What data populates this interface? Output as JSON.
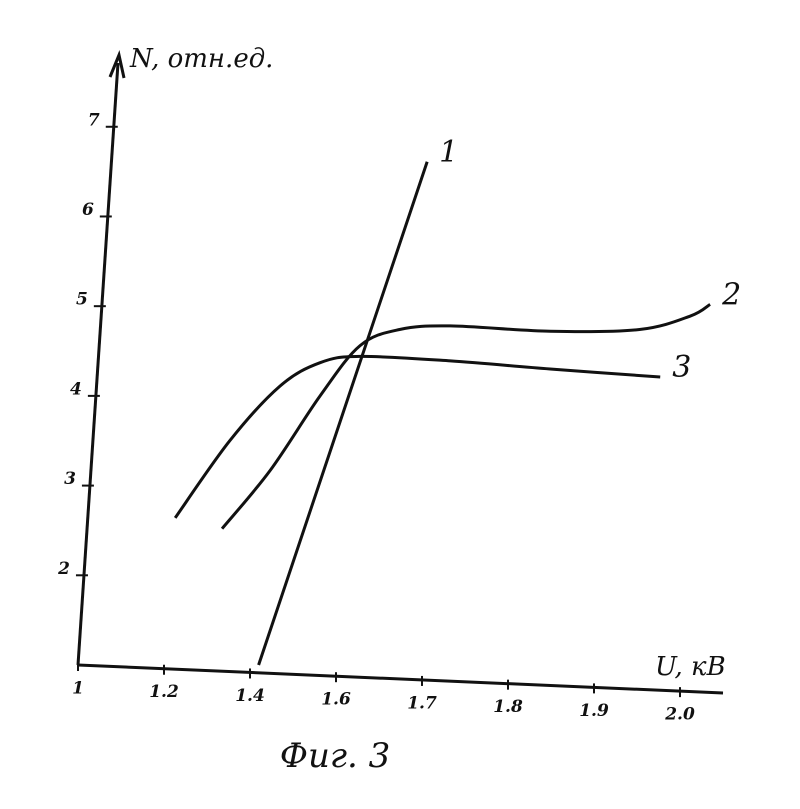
{
  "chart_data": {
    "type": "line",
    "title": "Фиг. 3",
    "x_label": "U, кВ",
    "y_label": "N, отн.ед.",
    "xlim": [
      1,
      2.05
    ],
    "xticks": [
      1,
      1.2,
      1.4,
      1.6,
      1.7,
      1.8,
      1.9,
      {
        "value": 2,
        "label": "2.0"
      }
    ],
    "ylim": [
      1,
      7.8
    ],
    "yticks": [
      2,
      3,
      4,
      5,
      6,
      7
    ],
    "grid": false,
    "series": [
      {
        "name": "1",
        "color": "#111111",
        "x": [
          1.42,
          1.706
        ],
        "values": [
          1.0,
          6.61
        ]
      },
      {
        "name": "2",
        "color": "#111111",
        "x": [
          1.335,
          1.447,
          1.563,
          1.628,
          1.674,
          1.733,
          1.849,
          1.953,
          2.012,
          2.035
        ],
        "values": [
          2.52,
          3.17,
          4.0,
          4.56,
          4.74,
          4.78,
          4.72,
          4.74,
          4.89,
          5.02
        ]
      },
      {
        "name": "3",
        "color": "#111111",
        "x": [
          1.226,
          1.353,
          1.47,
          1.563,
          1.628,
          1.733,
          1.849,
          1.977
        ],
        "values": [
          2.64,
          3.5,
          4.11,
          4.37,
          4.44,
          4.39,
          4.3,
          4.21
        ]
      }
    ]
  }
}
